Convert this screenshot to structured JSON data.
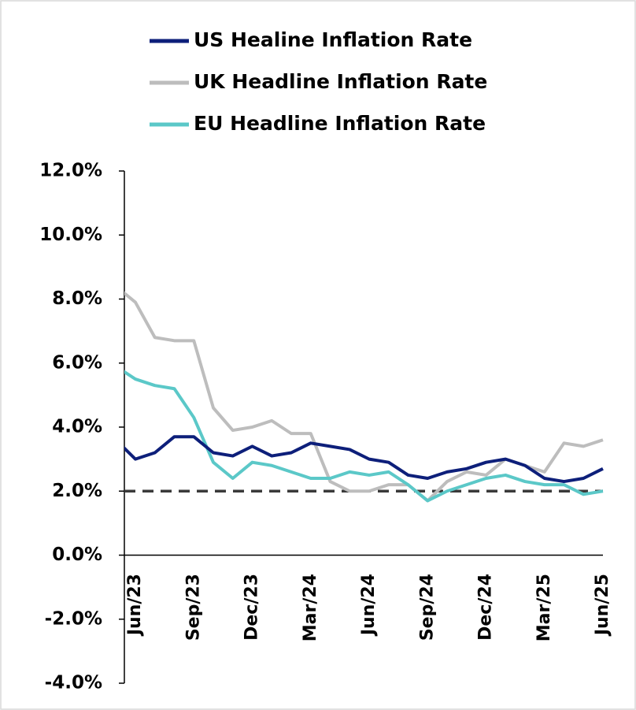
{
  "chart_data": {
    "type": "line",
    "categories": [
      null,
      "Jun/23",
      null,
      null,
      "Sep/23",
      null,
      null,
      "Dec/23",
      null,
      null,
      "Mar/24",
      null,
      null,
      "Jun/24",
      null,
      null,
      "Sep/24",
      null,
      null,
      "Dec/24",
      null,
      null,
      "Mar/25",
      null,
      null,
      "Jun/25"
    ],
    "series": [
      {
        "name": "US Healine Inflation Rate",
        "color": "#0d1f7a",
        "values": [
          3.6,
          3.0,
          3.2,
          3.7,
          3.7,
          3.2,
          3.1,
          3.4,
          3.1,
          3.2,
          3.5,
          3.4,
          3.3,
          3.0,
          2.9,
          2.5,
          2.4,
          2.6,
          2.7,
          2.9,
          3.0,
          2.8,
          2.4,
          2.3,
          2.4,
          2.7
        ]
      },
      {
        "name": "UK Headline Inflation Rate",
        "color": "#bdbdbd",
        "values": [
          8.4,
          7.9,
          6.8,
          6.7,
          6.7,
          4.6,
          3.9,
          4.0,
          4.2,
          3.8,
          3.8,
          2.3,
          2.0,
          2.0,
          2.2,
          2.2,
          1.7,
          2.3,
          2.6,
          2.5,
          3.0,
          2.8,
          2.6,
          3.5,
          3.4,
          3.6
        ]
      },
      {
        "name": "EU Headline Inflation Rate",
        "color": "#5bc8c8",
        "values": [
          5.9,
          5.5,
          5.3,
          5.2,
          4.3,
          2.9,
          2.4,
          2.9,
          2.8,
          2.6,
          2.4,
          2.4,
          2.6,
          2.5,
          2.6,
          2.2,
          1.7,
          2.0,
          2.2,
          2.4,
          2.5,
          2.3,
          2.2,
          2.2,
          1.9,
          2.0
        ]
      }
    ],
    "reference_line": {
      "value": 2,
      "color": "#3a3a3a"
    },
    "ylim": [
      -4,
      12
    ],
    "yticks": [
      {
        "value": -4,
        "label": "-4.0%"
      },
      {
        "value": -2,
        "label": "-2.0%"
      },
      {
        "value": 0,
        "label": "0.0%"
      },
      {
        "value": 2,
        "label": "2.0%"
      },
      {
        "value": 4,
        "label": "4.0%"
      },
      {
        "value": 6,
        "label": "6.0%"
      },
      {
        "value": 8,
        "label": "8.0%"
      },
      {
        "value": 10,
        "label": "10.0%"
      },
      {
        "value": 12,
        "label": "12.0%"
      }
    ],
    "legend": "top"
  }
}
